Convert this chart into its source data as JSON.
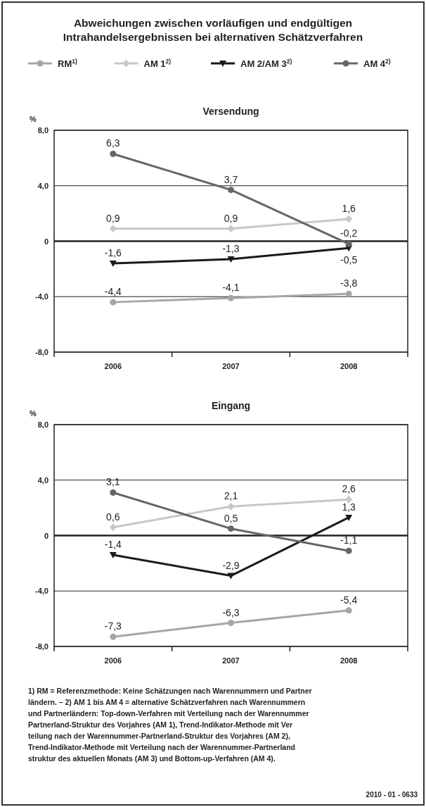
{
  "chart_data": [
    {
      "type": "line",
      "title": "Abweichungen zwischen vorläufigen und endgültigen\nIntrahandelsergebnissen bei alternativen Schätzverfahren",
      "subtitle": "Versendung",
      "ylabel": "%",
      "categories": [
        "2006",
        "2007",
        "2008"
      ],
      "ylim": [
        -8,
        8
      ],
      "yticks": [
        {
          "value": -8,
          "label": "-8,0"
        },
        {
          "value": -4,
          "label": "-4,0"
        },
        0,
        {
          "value": 4,
          "label": "4,0"
        },
        {
          "value": 8,
          "label": "8,0"
        }
      ],
      "grid": "y",
      "legend": "top",
      "series": [
        {
          "name": "RM$^{1)}$",
          "color": "#a6a6a6",
          "marker": "circle",
          "values": [
            -4.4,
            -4.1,
            -3.8
          ],
          "value_labels": [
            "-4,4",
            "-4,1",
            "-3,8"
          ]
        },
        {
          "name": "AM 1$^{2)}$",
          "color": "#c8c8c8",
          "marker": "diamond",
          "values": [
            0.9,
            0.9,
            1.6
          ],
          "value_labels": [
            "0,9",
            "0,9",
            "1,6"
          ]
        },
        {
          "name": "AM 2/AM 3$^{2)}$",
          "color": "#1a1a1a",
          "marker": "triangle",
          "values": [
            -1.6,
            -1.3,
            -0.5
          ],
          "value_labels": [
            "-1,6",
            "-1,3",
            "-0,5"
          ]
        },
        {
          "name": "AM 4$^{2)}$",
          "color": "#666666",
          "marker": "circle",
          "values": [
            6.3,
            3.7,
            -0.2
          ],
          "value_labels": [
            "6,3",
            "3,7",
            "-0,2"
          ]
        }
      ]
    },
    {
      "type": "line",
      "subtitle": "Eingang",
      "ylabel": "%",
      "categories": [
        "2006",
        "2007",
        "2008"
      ],
      "ylim": [
        -8,
        8
      ],
      "yticks": [
        {
          "value": -8,
          "label": "-8,0"
        },
        {
          "value": -4,
          "label": "-4,0"
        },
        0,
        {
          "value": 4,
          "label": "4,0"
        },
        {
          "value": 8,
          "label": "8,0"
        }
      ],
      "grid": "y",
      "series": [
        {
          "color": "#a6a6a6",
          "marker": "circle",
          "values": [
            -7.3,
            -6.3,
            -5.4
          ],
          "value_labels": [
            "-7,3",
            "-6,3",
            "-5,4"
          ]
        },
        {
          "color": "#c8c8c8",
          "marker": "diamond",
          "values": [
            0.6,
            2.1,
            2.6
          ],
          "value_labels": [
            "0,6",
            "2,1",
            "2,6"
          ]
        },
        {
          "color": "#1a1a1a",
          "marker": "triangle",
          "values": [
            -1.4,
            -2.9,
            1.3
          ],
          "value_labels": [
            "-1,4",
            "-2,9",
            "1,3"
          ]
        },
        {
          "color": "#666666",
          "marker": "circle",
          "values": [
            3.1,
            0.5,
            -1.1
          ],
          "value_labels": [
            "3,1",
            "0,5",
            "-1,1"
          ]
        }
      ],
      "annotations": [
        "1) RM = Referenzmethode: Keine Schätzungen nach Warennummern und Partner\nländern. – 2) AM 1 bis AM 4 = alternative Schätzverfahren nach Warennummern\nund Partnerländern: Top-down-Verfahren mit Verteilung nach der Warennummer\nPartnerland-Struktur des Vorjahres (AM 1), Trend-Indikator-Methode mit Ver\nteilung nach der Warennummer-Partnerland-Struktur des Vorjahres (AM 2),\nTrend-Indikator-Methode mit Verteilung nach der Warennummer-Partnerland\nstruktur des aktuellen Monats (AM 3) und Bottom-up-Verfahren (AM 4).",
        "2010 - 01 - 0633"
      ]
    }
  ]
}
